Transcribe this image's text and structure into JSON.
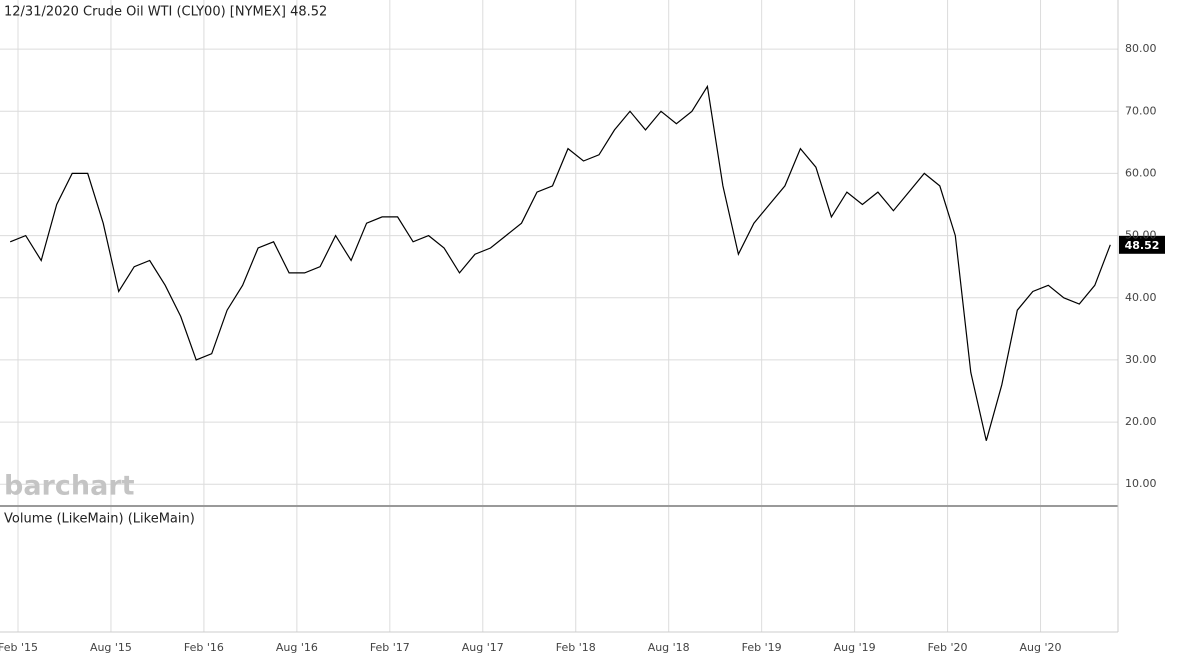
{
  "chart_data": {
    "type": "line",
    "title": "12/31/2020 Crude Oil WTI (CLY00) [NYMEX] 48.52",
    "watermark": "barchart",
    "lower_panel_title": "Volume (LikeMain)  (LikeMain)",
    "x": [
      "2015-01",
      "2015-02",
      "2015-03",
      "2015-04",
      "2015-05",
      "2015-06",
      "2015-07",
      "2015-08",
      "2015-09",
      "2015-10",
      "2015-11",
      "2015-12",
      "2016-01",
      "2016-02",
      "2016-03",
      "2016-04",
      "2016-05",
      "2016-06",
      "2016-07",
      "2016-08",
      "2016-09",
      "2016-10",
      "2016-11",
      "2016-12",
      "2017-01",
      "2017-02",
      "2017-03",
      "2017-04",
      "2017-05",
      "2017-06",
      "2017-07",
      "2017-08",
      "2017-09",
      "2017-10",
      "2017-11",
      "2017-12",
      "2018-01",
      "2018-02",
      "2018-03",
      "2018-04",
      "2018-05",
      "2018-06",
      "2018-07",
      "2018-08",
      "2018-09",
      "2018-10",
      "2018-11",
      "2018-12",
      "2019-01",
      "2019-02",
      "2019-03",
      "2019-04",
      "2019-05",
      "2019-06",
      "2019-07",
      "2019-08",
      "2019-09",
      "2019-10",
      "2019-11",
      "2019-12",
      "2020-01",
      "2020-02",
      "2020-03",
      "2020-04",
      "2020-05",
      "2020-06",
      "2020-07",
      "2020-08",
      "2020-09",
      "2020-10",
      "2020-11",
      "2020-12"
    ],
    "series": [
      {
        "name": "Crude Oil WTI",
        "color": "#000000",
        "values": [
          49,
          50,
          46,
          55,
          60,
          60,
          52,
          41,
          45,
          46,
          42,
          37,
          30,
          31,
          38,
          42,
          48,
          49,
          44,
          44,
          45,
          50,
          46,
          52,
          53,
          53,
          49,
          50,
          48,
          44,
          47,
          48,
          50,
          52,
          57,
          58,
          64,
          62,
          63,
          67,
          70,
          67,
          70,
          68,
          70,
          74,
          58,
          47,
          52,
          55,
          58,
          64,
          61,
          53,
          57,
          55,
          57,
          54,
          57,
          60,
          58,
          50,
          28,
          17,
          26,
          38,
          41,
          42,
          40,
          39,
          42,
          48.52
        ]
      }
    ],
    "xlim": [
      "2015-01",
      "2021-01"
    ],
    "xticks": [
      {
        "value": "2015-02",
        "label": "Feb '15"
      },
      {
        "value": "2015-08",
        "label": "Aug '15"
      },
      {
        "value": "2016-02",
        "label": "Feb '16"
      },
      {
        "value": "2016-08",
        "label": "Aug '16"
      },
      {
        "value": "2017-02",
        "label": "Feb '17"
      },
      {
        "value": "2017-08",
        "label": "Aug '17"
      },
      {
        "value": "2018-02",
        "label": "Feb '18"
      },
      {
        "value": "2018-08",
        "label": "Aug '18"
      },
      {
        "value": "2019-02",
        "label": "Feb '19"
      },
      {
        "value": "2019-08",
        "label": "Aug '19"
      },
      {
        "value": "2020-02",
        "label": "Feb '20"
      },
      {
        "value": "2020-08",
        "label": "Aug '20"
      }
    ],
    "ylim": [
      6.5,
      87.9
    ],
    "yticks": [
      {
        "value": 10,
        "label": "10.00"
      },
      {
        "value": 20,
        "label": "20.00"
      },
      {
        "value": 30,
        "label": "30.00"
      },
      {
        "value": 40,
        "label": "40.00"
      },
      {
        "value": 50,
        "label": "50.00"
      },
      {
        "value": 60,
        "label": "60.00"
      },
      {
        "value": 70,
        "label": "70.00"
      },
      {
        "value": 80,
        "label": "80.00"
      }
    ],
    "grid": true
  }
}
